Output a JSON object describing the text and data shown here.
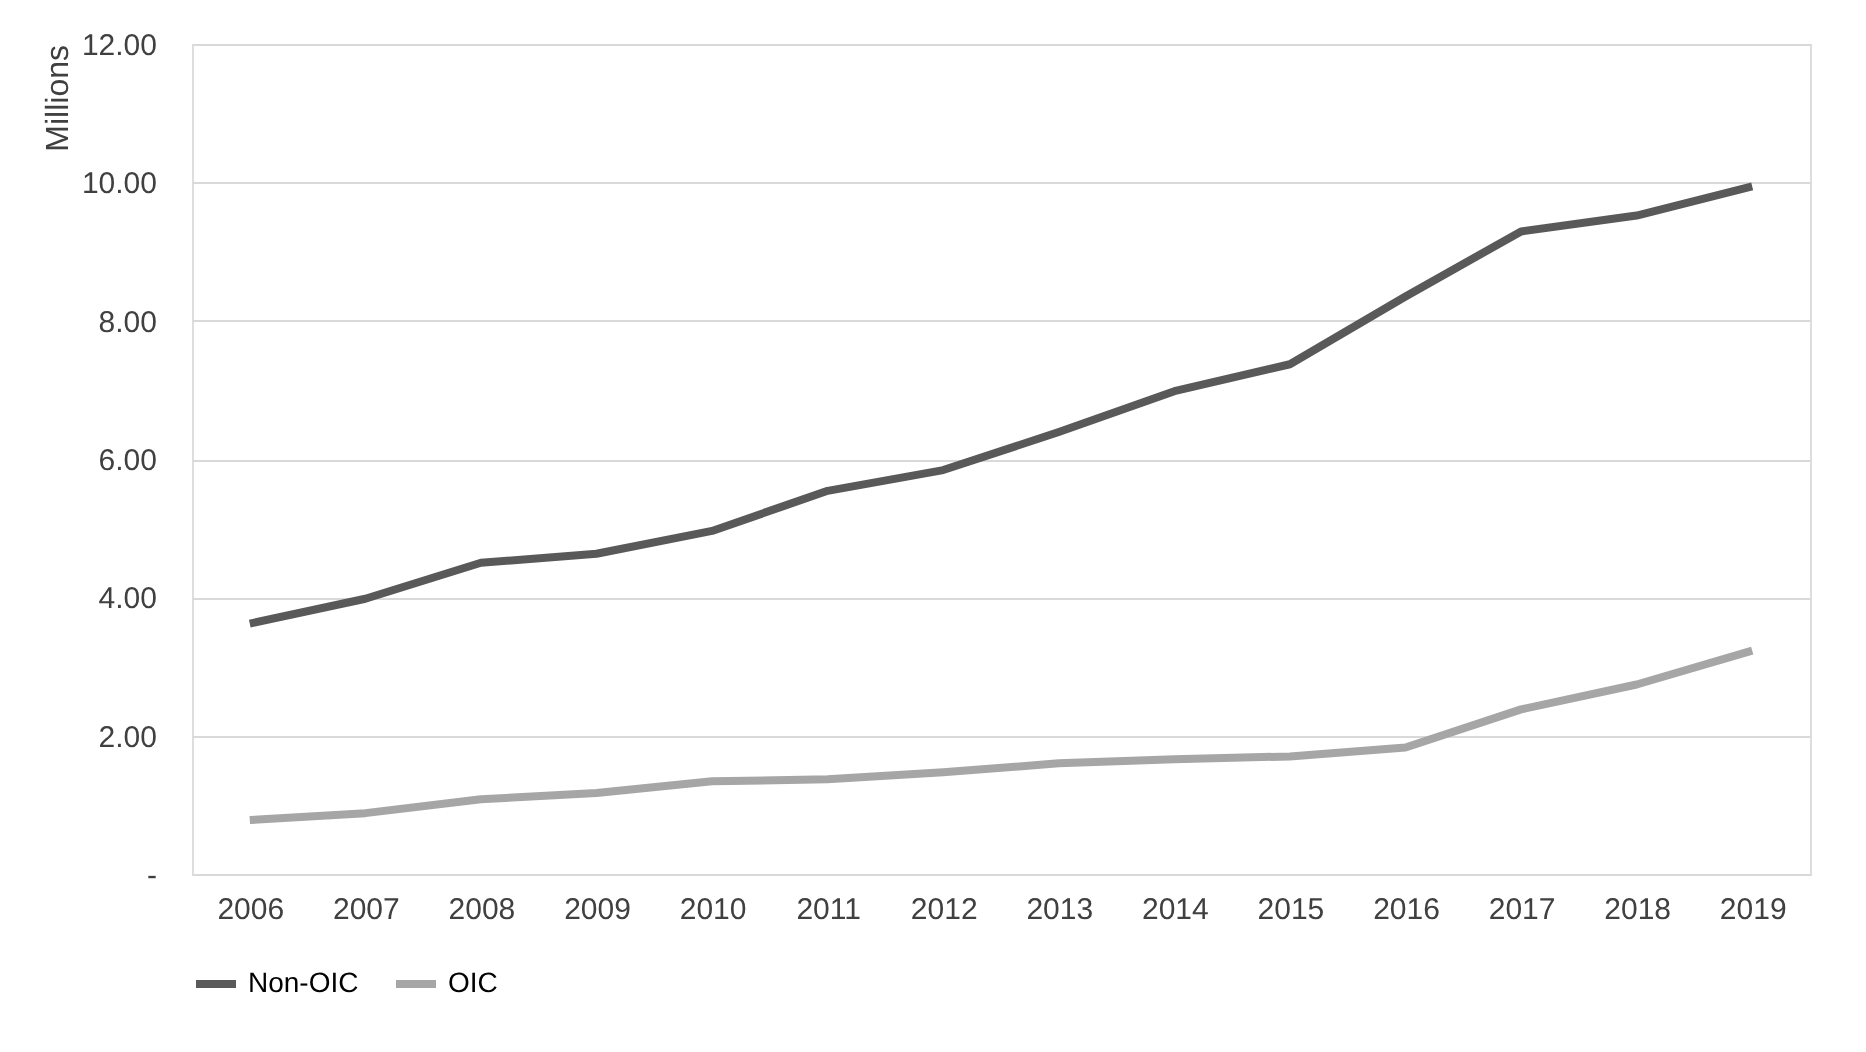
{
  "chart_data": {
    "type": "line",
    "ylabel": "Millions",
    "categories": [
      "2006",
      "2007",
      "2008",
      "2009",
      "2010",
      "2011",
      "2012",
      "2013",
      "2014",
      "2015",
      "2016",
      "2017",
      "2018",
      "2019"
    ],
    "series": [
      {
        "name": "Non-OIC",
        "color": "#595959",
        "values": [
          3.62,
          3.98,
          4.5,
          4.63,
          4.96,
          5.54,
          5.84,
          6.39,
          6.98,
          7.37,
          8.35,
          9.29,
          9.52,
          9.94
        ]
      },
      {
        "name": "OIC",
        "color": "#a6a6a6",
        "values": [
          0.78,
          0.88,
          1.08,
          1.17,
          1.34,
          1.37,
          1.47,
          1.6,
          1.66,
          1.7,
          1.83,
          2.38,
          2.74,
          3.23
        ]
      }
    ],
    "ylim": [
      0,
      12
    ],
    "yticks": [
      {
        "value": 0,
        "label": "-"
      },
      {
        "value": 2,
        "label": "2.00"
      },
      {
        "value": 4,
        "label": "4.00"
      },
      {
        "value": 6,
        "label": "6.00"
      },
      {
        "value": 8,
        "label": "8.00"
      },
      {
        "value": 10,
        "label": "10.00"
      },
      {
        "value": 12,
        "label": "12.00"
      }
    ],
    "grid": "y",
    "legend": "bottom",
    "marker": "none",
    "line_style": "solid"
  }
}
